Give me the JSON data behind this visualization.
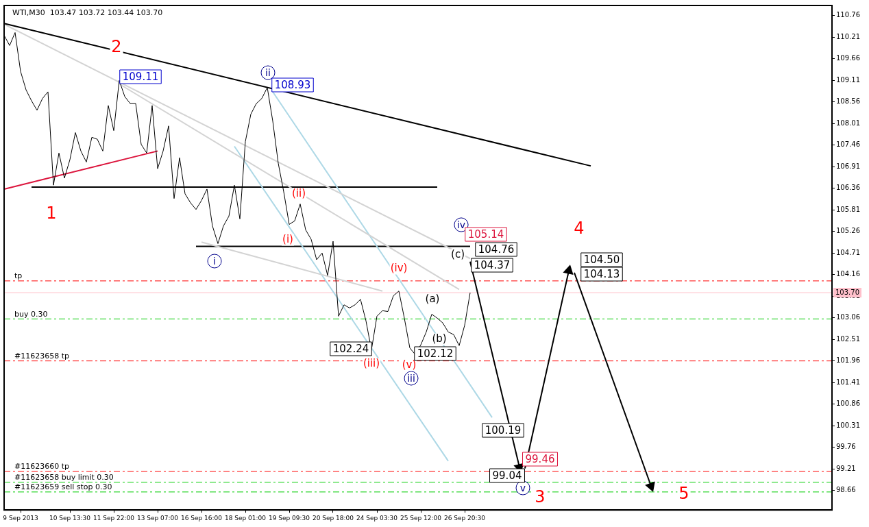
{
  "chart_data": {
    "type": "line",
    "title": "WTI,M30  103.47 103.72 103.44 103.70",
    "categories": [
      null,
      null,
      null,
      "9 Sep 2013",
      null,
      null,
      null,
      null,
      null,
      null,
      null,
      null,
      "10 Sep 13:30",
      null,
      null,
      null,
      null,
      null,
      null,
      null,
      "11 Sep 22:00",
      null,
      null,
      null,
      null,
      null,
      null,
      null,
      "13 Sep 07:00",
      null,
      null,
      null,
      null,
      null,
      null,
      null,
      "16 Sep 16:00",
      null,
      null,
      null,
      null,
      null,
      null,
      null,
      "18 Sep 01:00",
      null,
      null,
      null,
      null,
      null,
      null,
      null,
      "19 Sep 09:30",
      null,
      null,
      null,
      null,
      null,
      null,
      null,
      "20 Sep 18:00",
      null,
      null,
      null,
      null,
      null,
      null,
      null,
      "24 Sep 03:30",
      null,
      null,
      null,
      null,
      null,
      null,
      null,
      "25 Sep 12:00",
      null,
      null,
      null,
      null,
      null,
      null,
      null,
      "26 Sep 20:30",
      null,
      null,
      null,
      null,
      null,
      null,
      null,
      null,
      null,
      null,
      null,
      null,
      null,
      null,
      null,
      null,
      null,
      null,
      null,
      null,
      null,
      null,
      null,
      null,
      null,
      null,
      null,
      null,
      null,
      null,
      null,
      null,
      null,
      null,
      null,
      null,
      null,
      null,
      null,
      null,
      null,
      null,
      null,
      null,
      null,
      null,
      null,
      null,
      null,
      null,
      null,
      null,
      null,
      null,
      null,
      null,
      null,
      null,
      null,
      null,
      null,
      null,
      null,
      null,
      null,
      null,
      null
    ],
    "ylim": [
      98.16,
      111.02
    ],
    "yticks": [
      110.76,
      110.21,
      109.66,
      109.11,
      108.56,
      108.01,
      107.46,
      106.91,
      106.36,
      105.81,
      105.26,
      104.71,
      104.16,
      103.61,
      103.06,
      102.51,
      101.96,
      101.41,
      100.86,
      100.31,
      99.76,
      99.21,
      98.66
    ],
    "grid": false,
    "legend": false,
    "marker": "none",
    "line_style": "solid",
    "series": [
      {
        "color": "#000000",
        "values": [
          110.26,
          110.0,
          110.33,
          109.34,
          108.87,
          108.59,
          108.35,
          108.65,
          108.82,
          106.44,
          107.26,
          106.62,
          107.09,
          107.78,
          107.31,
          107.03,
          107.66,
          107.61,
          107.31,
          108.47,
          107.83,
          109.11,
          108.7,
          108.52,
          108.52,
          107.48,
          107.26,
          108.47,
          106.86,
          107.31,
          107.95,
          106.1,
          107.14,
          106.22,
          105.99,
          105.82,
          106.05,
          106.34,
          105.4,
          104.95,
          105.4,
          105.65,
          106.44,
          105.58,
          107.55,
          108.25,
          108.52,
          108.65,
          108.93,
          108.07,
          107.0,
          106.27,
          105.44,
          105.53,
          105.96,
          105.3,
          105.06,
          104.54,
          104.71,
          104.14,
          105.01,
          103.1,
          103.39,
          103.31,
          103.39,
          103.53,
          102.98,
          102.24,
          103.1,
          103.24,
          103.22,
          103.62,
          103.74,
          103.05,
          102.29,
          102.12,
          102.37,
          102.7,
          103.15,
          103.05,
          102.93,
          102.7,
          102.63,
          102.35,
          102.87,
          103.7,
          null,
          null,
          null,
          null,
          null,
          null,
          null,
          null,
          null,
          null,
          null,
          null,
          null,
          null,
          null,
          null,
          null,
          null,
          null,
          null,
          null,
          null,
          null,
          null,
          null,
          null,
          null,
          null,
          null,
          null,
          null,
          null,
          null,
          null,
          null,
          null,
          null,
          null,
          null,
          null,
          null,
          null,
          null,
          null,
          null,
          null,
          null,
          null,
          null,
          null,
          null,
          null,
          null,
          null,
          null,
          null,
          null,
          null,
          null,
          null,
          null,
          null,
          null,
          null,
          null,
          null
        ]
      },
      {
        "color": "#000000",
        "values": [
          110.56,
          null,
          null,
          null,
          null,
          null,
          null,
          null,
          null,
          null,
          null,
          null,
          null,
          null,
          null,
          null,
          null,
          null,
          null,
          null,
          null,
          null,
          null,
          null,
          null,
          null,
          null,
          null,
          null,
          null,
          null,
          null,
          null,
          null,
          null,
          null,
          null,
          null,
          null,
          null,
          null,
          null,
          null,
          null,
          null,
          null,
          null,
          null,
          null,
          null,
          null,
          null,
          null,
          null,
          null,
          null,
          null,
          null,
          null,
          null,
          null,
          null,
          null,
          null,
          null,
          null,
          null,
          null,
          null,
          null,
          null,
          null,
          null,
          null,
          null,
          null,
          null,
          null,
          null,
          null,
          null,
          null,
          null,
          null,
          null,
          null,
          null,
          null,
          null,
          null,
          null,
          null,
          null,
          null,
          null,
          null,
          null,
          null,
          null,
          null,
          null,
          null,
          null,
          null,
          null,
          null,
          null,
          106.93,
          null,
          null,
          null,
          null,
          null,
          null,
          null,
          null,
          null,
          null,
          null,
          null,
          null,
          null,
          null,
          null,
          null,
          null,
          null,
          null,
          null,
          null,
          null,
          null,
          null,
          null,
          null,
          null,
          null,
          null,
          null,
          null,
          null,
          null,
          null,
          null,
          null,
          null,
          null,
          null,
          null,
          null,
          null,
          null
        ]
      },
      {
        "color": "#d3d3d3",
        "values": [
          110.54,
          null,
          null,
          null,
          null,
          null,
          null,
          null,
          null,
          null,
          null,
          null,
          null,
          null,
          null,
          null,
          null,
          null,
          null,
          null,
          null,
          null,
          null,
          null,
          null,
          null,
          null,
          null,
          null,
          null,
          null,
          null,
          null,
          null,
          null,
          null,
          null,
          null,
          null,
          null,
          null,
          null,
          null,
          null,
          null,
          null,
          null,
          null,
          null,
          null,
          null,
          null,
          null,
          null,
          null,
          null,
          null,
          null,
          null,
          null,
          null,
          null,
          null,
          null,
          null,
          null,
          null,
          null,
          null,
          null,
          null,
          null,
          null,
          null,
          null,
          null,
          null,
          null,
          null,
          null,
          null,
          null,
          null,
          null,
          null,
          104.57,
          null,
          null,
          null,
          null,
          null,
          null,
          null,
          null,
          null,
          null,
          null,
          null,
          null,
          null,
          null,
          null,
          null,
          null,
          null,
          null,
          null,
          null,
          null,
          null,
          null,
          null,
          null,
          null,
          null,
          null,
          null,
          null,
          null,
          null,
          null,
          null,
          null,
          null,
          null,
          null,
          null,
          null,
          null,
          null,
          null,
          null,
          null,
          null,
          null,
          null,
          null,
          null,
          null,
          null,
          null,
          null,
          null,
          null,
          null,
          null,
          null,
          null,
          null,
          null,
          null,
          null
        ]
      },
      {
        "color": "#d3d3d3",
        "values": [
          null,
          null,
          null,
          null,
          null,
          null,
          null,
          null,
          null,
          null,
          null,
          null,
          null,
          null,
          null,
          null,
          null,
          null,
          null,
          null,
          null,
          109.02,
          null,
          null,
          null,
          null,
          null,
          null,
          null,
          null,
          null,
          null,
          null,
          null,
          null,
          null,
          null,
          null,
          null,
          null,
          null,
          null,
          null,
          null,
          null,
          null,
          null,
          null,
          null,
          null,
          null,
          null,
          null,
          null,
          null,
          null,
          null,
          null,
          null,
          null,
          null,
          null,
          null,
          null,
          null,
          null,
          null,
          null,
          null,
          null,
          null,
          null,
          null,
          null,
          null,
          null,
          null,
          null,
          null,
          null,
          null,
          null,
          null,
          103.78,
          null,
          null,
          null,
          null,
          null,
          null,
          null,
          null,
          null,
          null,
          null,
          null,
          null,
          null,
          null,
          null,
          null,
          null,
          null,
          null,
          null,
          null,
          null,
          null,
          null,
          null,
          null,
          null,
          null,
          null,
          null,
          null,
          null,
          null,
          null,
          null,
          null,
          null,
          null,
          null,
          null,
          null,
          null,
          null,
          null,
          null,
          null,
          null,
          null,
          null,
          null,
          null,
          null,
          null,
          null,
          null,
          null,
          null,
          null,
          null,
          null,
          null,
          null,
          null,
          null,
          null,
          null,
          null
        ]
      },
      {
        "color": "#d3d3d3",
        "values": [
          null,
          null,
          null,
          null,
          null,
          null,
          null,
          null,
          null,
          null,
          null,
          null,
          null,
          null,
          null,
          null,
          null,
          null,
          null,
          null,
          null,
          null,
          null,
          null,
          null,
          null,
          null,
          null,
          null,
          null,
          null,
          null,
          null,
          null,
          null,
          null,
          104.99,
          null,
          null,
          null,
          null,
          null,
          null,
          null,
          null,
          null,
          null,
          null,
          null,
          null,
          null,
          null,
          null,
          null,
          null,
          null,
          null,
          null,
          null,
          null,
          null,
          null,
          null,
          null,
          null,
          null,
          null,
          null,
          null,
          103.74,
          null,
          null,
          null,
          null,
          null,
          null,
          null,
          null,
          null,
          null,
          null,
          null,
          null,
          null,
          null,
          null,
          null,
          null,
          null,
          null,
          null,
          null,
          null,
          null,
          null,
          null,
          null,
          null,
          null,
          null,
          null,
          null,
          null,
          null,
          null,
          null,
          null,
          null,
          null,
          null,
          null,
          null,
          null,
          null,
          null,
          null,
          null,
          null,
          null,
          null,
          null,
          null,
          null,
          null,
          null,
          null,
          null,
          null,
          null,
          null,
          null,
          null,
          null,
          null,
          null,
          null,
          null,
          null,
          null,
          null,
          null,
          null,
          null,
          null,
          null,
          null,
          null,
          null,
          null,
          null,
          null,
          null
        ]
      },
      {
        "color": "#add8e6",
        "values": [
          null,
          null,
          null,
          null,
          null,
          null,
          null,
          null,
          null,
          null,
          null,
          null,
          null,
          null,
          null,
          null,
          null,
          null,
          null,
          null,
          null,
          null,
          null,
          null,
          null,
          null,
          null,
          null,
          null,
          null,
          null,
          null,
          null,
          null,
          null,
          null,
          null,
          null,
          null,
          null,
          null,
          null,
          107.43,
          null,
          null,
          null,
          null,
          null,
          null,
          null,
          null,
          null,
          null,
          null,
          null,
          null,
          null,
          null,
          null,
          null,
          null,
          null,
          null,
          null,
          null,
          null,
          null,
          null,
          null,
          null,
          null,
          null,
          null,
          null,
          null,
          null,
          null,
          null,
          null,
          null,
          null,
          99.41,
          null,
          null,
          null,
          null,
          null,
          null,
          null,
          null,
          null,
          null,
          null,
          null,
          null,
          null,
          null,
          null,
          null,
          null,
          null,
          null,
          null,
          null,
          null,
          null,
          null,
          null,
          null,
          null,
          null,
          null,
          null,
          null,
          null,
          null,
          null,
          null,
          null,
          null,
          null,
          null,
          null,
          null,
          null,
          null,
          null,
          null,
          null,
          null,
          null,
          null,
          null,
          null,
          null,
          null,
          null,
          null,
          null,
          null,
          null,
          null,
          null,
          null,
          null,
          null,
          null,
          null,
          null,
          null,
          null,
          null
        ]
      },
      {
        "color": "#add8e6",
        "values": [
          null,
          null,
          null,
          null,
          null,
          null,
          null,
          null,
          null,
          null,
          null,
          null,
          null,
          null,
          null,
          null,
          null,
          null,
          null,
          null,
          null,
          null,
          null,
          null,
          null,
          null,
          null,
          null,
          null,
          null,
          null,
          null,
          null,
          null,
          null,
          null,
          null,
          null,
          null,
          null,
          null,
          null,
          null,
          null,
          null,
          null,
          null,
          null,
          null,
          108.82,
          null,
          null,
          null,
          null,
          null,
          null,
          null,
          null,
          null,
          null,
          null,
          null,
          null,
          null,
          null,
          null,
          null,
          null,
          null,
          null,
          null,
          null,
          null,
          null,
          null,
          null,
          null,
          null,
          null,
          null,
          null,
          null,
          null,
          null,
          null,
          null,
          null,
          null,
          null,
          100.52,
          null,
          null,
          null,
          null,
          null,
          null,
          null,
          null,
          null,
          null,
          null,
          null,
          null,
          null,
          null,
          null,
          null,
          null,
          null,
          null,
          null,
          null,
          null,
          null,
          null,
          null,
          null,
          null,
          null,
          null,
          null,
          null,
          null,
          null,
          null,
          null,
          null,
          null,
          null,
          null,
          null,
          null,
          null,
          null,
          null,
          null,
          null,
          null,
          null,
          null,
          null,
          null,
          null,
          null,
          null,
          null,
          null,
          null,
          null,
          null,
          null,
          null
        ]
      },
      {
        "color": "#dc143c",
        "values": [
          106.34,
          null,
          null,
          null,
          null,
          null,
          null,
          null,
          null,
          null,
          null,
          null,
          null,
          null,
          null,
          null,
          null,
          null,
          null,
          null,
          null,
          null,
          null,
          null,
          null,
          null,
          null,
          null,
          107.31,
          null,
          null,
          null,
          null,
          null,
          null,
          null,
          null,
          null,
          null,
          null,
          null,
          null,
          null,
          null,
          null,
          null,
          null,
          null,
          null,
          null,
          null,
          null,
          null,
          null,
          null,
          null,
          null,
          null,
          null,
          null,
          null,
          null,
          null,
          null,
          null,
          null,
          null,
          null,
          null,
          null,
          null,
          null,
          null,
          null,
          null,
          null,
          null,
          null,
          null,
          null,
          null,
          null,
          null,
          null,
          null,
          null,
          null,
          null,
          null,
          null,
          null,
          null,
          null,
          null,
          null,
          null,
          null,
          null,
          null,
          null,
          null,
          null,
          null,
          null,
          null,
          null,
          null,
          null,
          null,
          null,
          null,
          null,
          null,
          null,
          null,
          null,
          null,
          null,
          null,
          null,
          null,
          null,
          null,
          null,
          null,
          null,
          null,
          null,
          null,
          null,
          null,
          null,
          null,
          null,
          null,
          null,
          null,
          null,
          null,
          null,
          null,
          null,
          null,
          null,
          null,
          null,
          null,
          null,
          null,
          null,
          null,
          null
        ]
      },
      {
        "color": "#000000",
        "values": [
          null,
          null,
          null,
          null,
          null,
          106.39,
          null,
          null,
          null,
          null,
          null,
          null,
          null,
          null,
          null,
          null,
          null,
          null,
          null,
          null,
          null,
          null,
          null,
          null,
          null,
          null,
          null,
          null,
          null,
          null,
          null,
          null,
          null,
          null,
          null,
          null,
          null,
          null,
          null,
          null,
          null,
          null,
          null,
          null,
          null,
          null,
          null,
          null,
          null,
          null,
          null,
          null,
          null,
          null,
          null,
          null,
          null,
          null,
          null,
          null,
          null,
          null,
          null,
          null,
          null,
          null,
          null,
          null,
          null,
          null,
          null,
          null,
          null,
          null,
          null,
          null,
          null,
          null,
          null,
          106.39,
          null,
          null,
          null,
          null,
          null,
          null,
          null,
          null,
          null,
          null,
          null,
          null,
          null,
          null,
          null,
          null,
          null,
          null,
          null,
          null,
          null,
          null,
          null,
          null,
          null,
          null,
          null,
          null,
          null,
          null,
          null,
          null,
          null,
          null,
          null,
          null,
          null,
          null,
          null,
          null,
          null,
          null,
          null,
          null,
          null,
          null,
          null,
          null,
          null,
          null,
          null,
          null,
          null,
          null,
          null,
          null,
          null,
          null,
          null,
          null,
          null,
          null,
          null,
          null,
          null,
          null,
          null,
          null,
          null,
          null,
          null,
          null
        ]
      },
      {
        "color": "#000000",
        "values": [
          null,
          null,
          null,
          null,
          null,
          null,
          null,
          null,
          null,
          null,
          null,
          null,
          null,
          null,
          null,
          null,
          null,
          null,
          null,
          null,
          null,
          null,
          null,
          null,
          null,
          null,
          null,
          null,
          null,
          null,
          null,
          null,
          null,
          null,
          null,
          104.88,
          null,
          null,
          null,
          null,
          null,
          null,
          null,
          null,
          null,
          null,
          null,
          null,
          null,
          null,
          null,
          null,
          null,
          null,
          null,
          null,
          null,
          null,
          null,
          null,
          null,
          null,
          null,
          null,
          null,
          null,
          null,
          null,
          null,
          null,
          null,
          null,
          null,
          null,
          null,
          null,
          null,
          null,
          null,
          null,
          null,
          null,
          null,
          null,
          null,
          104.88,
          null,
          null,
          null,
          null,
          null,
          null,
          null,
          null,
          null,
          null,
          null,
          null,
          null,
          null,
          null,
          null,
          null,
          null,
          null,
          null,
          null,
          null,
          null,
          null,
          null,
          null,
          null,
          null,
          null,
          null,
          null,
          null,
          null,
          null,
          null,
          null,
          null,
          null,
          null,
          null,
          null,
          null,
          null,
          null,
          null,
          null,
          null,
          null,
          null,
          null,
          null,
          null,
          null,
          null,
          null,
          null,
          null,
          null,
          null,
          null,
          null,
          null,
          null,
          null,
          null,
          null
        ]
      },
      {
        "color": "#000000",
        "marker": "triangle",
        "values": [
          null,
          null,
          null,
          null,
          null,
          null,
          null,
          null,
          null,
          null,
          null,
          null,
          null,
          null,
          null,
          null,
          null,
          null,
          null,
          null,
          null,
          null,
          null,
          null,
          null,
          null,
          null,
          null,
          null,
          null,
          null,
          null,
          null,
          null,
          null,
          null,
          null,
          null,
          null,
          null,
          null,
          null,
          null,
          null,
          null,
          null,
          null,
          null,
          null,
          null,
          null,
          null,
          null,
          null,
          null,
          null,
          null,
          null,
          null,
          null,
          null,
          null,
          null,
          null,
          null,
          null,
          null,
          null,
          null,
          null,
          null,
          null,
          null,
          null,
          null,
          null,
          null,
          null,
          null,
          null,
          null,
          null,
          null,
          null,
          null,
          104.49,
          null,
          null,
          null,
          null,
          null,
          null,
          null,
          null,
          99.25,
          null,
          null,
          null,
          null,
          null,
          null,
          null,
          null,
          null,
          null,
          null,
          null,
          null,
          null,
          null,
          null,
          null,
          null,
          null,
          null,
          null,
          null,
          null,
          null,
          null,
          null,
          null,
          null,
          null,
          null,
          null,
          null,
          null,
          null,
          null,
          null,
          null,
          null,
          null,
          null,
          null,
          null,
          null,
          null,
          null,
          null,
          null,
          null,
          null,
          null,
          null,
          null,
          null,
          null,
          null,
          null,
          null
        ]
      },
      {
        "color": "#000000",
        "marker": "triangle",
        "values": [
          null,
          null,
          null,
          null,
          null,
          null,
          null,
          null,
          null,
          null,
          null,
          null,
          null,
          null,
          null,
          null,
          null,
          null,
          null,
          null,
          null,
          null,
          null,
          null,
          null,
          null,
          null,
          null,
          null,
          null,
          null,
          null,
          null,
          null,
          null,
          null,
          null,
          null,
          null,
          null,
          null,
          null,
          null,
          null,
          null,
          null,
          null,
          null,
          null,
          null,
          null,
          null,
          null,
          null,
          null,
          null,
          null,
          null,
          null,
          null,
          null,
          null,
          null,
          null,
          null,
          null,
          null,
          null,
          null,
          null,
          null,
          null,
          null,
          null,
          null,
          null,
          null,
          null,
          null,
          null,
          null,
          null,
          null,
          null,
          null,
          null,
          null,
          null,
          null,
          null,
          null,
          null,
          null,
          null,
          null,
          99.22,
          null,
          null,
          null,
          null,
          null,
          null,
          null,
          104.26,
          null,
          null,
          null,
          null,
          null,
          null,
          null,
          null,
          null,
          null,
          null,
          null,
          null,
          null,
          null,
          null,
          null,
          null,
          null,
          null,
          null,
          null,
          null,
          null,
          null,
          null,
          null,
          null,
          null,
          null,
          null,
          null,
          null,
          null,
          null,
          null,
          null,
          null,
          null,
          null,
          null,
          null,
          null,
          null,
          null,
          null,
          null,
          null
        ]
      },
      {
        "color": "#000000",
        "marker": "triangle",
        "values": [
          null,
          null,
          null,
          null,
          null,
          null,
          null,
          null,
          null,
          null,
          null,
          null,
          null,
          null,
          null,
          null,
          null,
          null,
          null,
          null,
          null,
          null,
          null,
          null,
          null,
          null,
          null,
          null,
          null,
          null,
          null,
          null,
          null,
          null,
          null,
          null,
          null,
          null,
          null,
          null,
          null,
          null,
          null,
          null,
          null,
          null,
          null,
          null,
          null,
          null,
          null,
          null,
          null,
          null,
          null,
          null,
          null,
          null,
          null,
          null,
          null,
          null,
          null,
          null,
          null,
          null,
          null,
          null,
          null,
          null,
          null,
          null,
          null,
          null,
          null,
          null,
          null,
          null,
          null,
          null,
          null,
          null,
          null,
          null,
          null,
          null,
          null,
          null,
          null,
          null,
          null,
          null,
          null,
          null,
          null,
          null,
          null,
          null,
          null,
          null,
          null,
          null,
          null,
          null,
          104.21,
          null,
          null,
          null,
          null,
          null,
          null,
          null,
          null,
          null,
          null,
          null,
          null,
          null,
          98.77,
          null,
          null,
          null,
          null,
          null,
          null,
          null,
          null,
          null,
          null,
          null,
          null,
          null,
          null,
          null,
          null,
          null,
          null,
          null,
          null,
          null,
          null,
          null,
          null,
          null,
          null,
          null,
          null,
          null,
          null,
          null,
          null,
          null
        ]
      }
    ],
    "ref_lines": [
      {
        "axis": "y",
        "value": 104.0,
        "label": "tp",
        "color": "#ff0000",
        "line_style": "dashed"
      },
      {
        "axis": "y",
        "value": 103.7,
        "label": "103.70",
        "color": "#ffc0cb",
        "line_style": "solid"
      },
      {
        "axis": "y",
        "value": 103.03,
        "label": "buy 0.30",
        "color": "#00cc00",
        "line_style": "dashed"
      },
      {
        "axis": "y",
        "value": 101.96,
        "label": "#11623658 tp",
        "color": "#ff0000",
        "line_style": "dashed"
      },
      {
        "axis": "y",
        "value": 99.15,
        "label": "#11623660 tp",
        "color": "#ff0000",
        "line_style": "dashed"
      },
      {
        "axis": "y",
        "value": 98.87,
        "label": "#11623658 buy limit 0.30",
        "color": "#00cc00",
        "line_style": "dashed"
      },
      {
        "axis": "y",
        "value": 98.62,
        "label": "#11623659 sell stop 0.30",
        "color": "#00cc00",
        "line_style": "dashed"
      }
    ],
    "annotations": [
      "1",
      "2",
      "3",
      "4",
      "5",
      "i",
      "ii",
      "iii",
      "iv",
      "v",
      "(i)",
      "(ii)",
      "(iii)",
      "(iv)",
      "(v)",
      "(a)",
      "(b)",
      "(c)",
      "109.11",
      "108.93",
      "102.24",
      "102.12",
      "105.14",
      "104.76",
      "104.37",
      "104.50",
      "104.13",
      "100.19",
      "99.46",
      "99.04"
    ]
  }
}
